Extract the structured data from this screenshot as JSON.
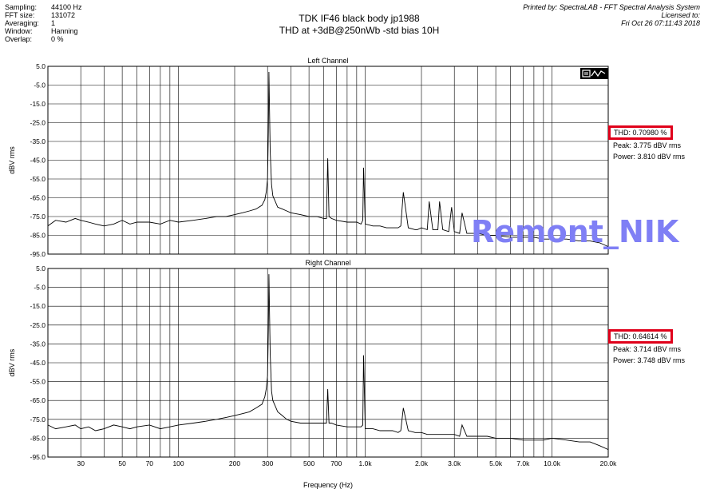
{
  "settings": [
    {
      "key": "Sampling:",
      "value": "44100 Hz"
    },
    {
      "key": "FFT size:",
      "value": "131072"
    },
    {
      "key": "Averaging:",
      "value": "1"
    },
    {
      "key": "Window:",
      "value": "Hanning"
    },
    {
      "key": "Overlap:",
      "value": "0 %"
    }
  ],
  "header": {
    "title": "TDK IF46 black body jp1988",
    "subtitle": "THD at +3dB@250nWb -std bias 10H",
    "printed_by": "Printed by: SpectraLAB - FFT Spectral Analysis System",
    "licensed_to": "Licensed to:",
    "timestamp": "Fri Oct 26 07:11:43 2018"
  },
  "watermark": "Remont_NIK",
  "left_stats": {
    "thd": "THD: 0.70980 %",
    "peak": "Peak: 3.775 dBV rms",
    "power": "Power: 3.810 dBV rms"
  },
  "right_stats": {
    "thd": "THD: 0.64614 %",
    "peak": "Peak: 3.714 dBV rms",
    "power": "Power: 3.748 dBV rms"
  },
  "colors": {
    "trace": "#000000",
    "highlight": "#e0001a",
    "watermark": "#7f7ff5"
  },
  "icons": {
    "toolbar": "spectrum-toolbar-icon"
  },
  "chart_data": [
    {
      "type": "line",
      "title": "Left Channel",
      "xlabel": "Frequency (Hz)",
      "ylabel": "dBV rms",
      "x_scale": "log",
      "xlim": [
        20,
        20000
      ],
      "ylim": [
        -95,
        5
      ],
      "xticks": [
        30,
        50,
        70,
        100,
        200,
        300,
        500,
        700,
        1000,
        2000,
        3000,
        5000,
        7000,
        10000,
        20000
      ],
      "xtick_labels": [
        "30",
        "50",
        "70",
        "100",
        "200",
        "300",
        "500",
        "700",
        "1.0k",
        "2.0k",
        "3.0k",
        "5.0k",
        "7.0k",
        "10.0k",
        "20.0k"
      ],
      "yticks": [
        5,
        -5,
        -15,
        -25,
        -35,
        -45,
        -55,
        -65,
        -75,
        -85,
        -95
      ],
      "ytick_labels": [
        "5.0",
        "-5.0",
        "-15.0",
        "-25.0",
        "-35.0",
        "-45.0",
        "-55.0",
        "-65.0",
        "-75.0",
        "-85.0",
        "-95.0"
      ],
      "grid": true,
      "series": [
        {
          "x": [
            20,
            22,
            25,
            28,
            30,
            33,
            36,
            40,
            45,
            50,
            55,
            60,
            70,
            80,
            90,
            100,
            120,
            140,
            160,
            180,
            200,
            220,
            240,
            260,
            280,
            290,
            295,
            300,
            303,
            305,
            310,
            315,
            320,
            330,
            340,
            360,
            380,
            400,
            450,
            500,
            550,
            600,
            620,
            630,
            640,
            660,
            700,
            800,
            900,
            950,
            970,
            980,
            1000,
            1100,
            1200,
            1300,
            1400,
            1500,
            1550,
            1600,
            1700,
            1850,
            1900,
            2000,
            2150,
            2200,
            2300,
            2450,
            2500,
            2600,
            2800,
            2900,
            3000,
            3200,
            3300,
            3500,
            4000,
            4500,
            5000,
            6000,
            7000,
            8000,
            9000,
            10000,
            12000,
            14000,
            16000,
            18000,
            20000
          ],
          "y": [
            -80,
            -77,
            -78,
            -76,
            -77,
            -78,
            -79,
            -80,
            -79,
            -77,
            -79,
            -78,
            -78,
            -79,
            -77,
            -78,
            -77,
            -76,
            -75,
            -75,
            -74,
            -73,
            -72,
            -71,
            -69,
            -66,
            -62,
            -55,
            -30,
            2,
            -40,
            -58,
            -64,
            -67,
            -70,
            -71,
            -72,
            -73,
            -74,
            -75,
            -75,
            -76,
            -76,
            -44,
            -75,
            -76,
            -77,
            -78,
            -78,
            -79,
            -77,
            -49,
            -79,
            -80,
            -80,
            -81,
            -81,
            -81,
            -80,
            -62,
            -81,
            -82,
            -82,
            -81,
            -82,
            -67,
            -82,
            -82,
            -67,
            -82,
            -83,
            -70,
            -83,
            -84,
            -73,
            -84,
            -84,
            -85,
            -85,
            -86,
            -86,
            -86,
            -87,
            -87,
            -87,
            -88,
            -88,
            -89,
            -91
          ]
        }
      ]
    },
    {
      "type": "line",
      "title": "Right Channel",
      "xlabel": "Frequency (Hz)",
      "ylabel": "dBV rms",
      "x_scale": "log",
      "xlim": [
        20,
        20000
      ],
      "ylim": [
        -95,
        5
      ],
      "xticks": [
        30,
        50,
        70,
        100,
        200,
        300,
        500,
        700,
        1000,
        2000,
        3000,
        5000,
        7000,
        10000,
        20000
      ],
      "xtick_labels": [
        "30",
        "50",
        "70",
        "100",
        "200",
        "300",
        "500",
        "700",
        "1.0k",
        "2.0k",
        "3.0k",
        "5.0k",
        "7.0k",
        "10.0k",
        "20.0k"
      ],
      "yticks": [
        5,
        -5,
        -15,
        -25,
        -35,
        -45,
        -55,
        -65,
        -75,
        -85,
        -95
      ],
      "ytick_labels": [
        "5.0",
        "-5.0",
        "-15.0",
        "-25.0",
        "-35.0",
        "-45.0",
        "-55.0",
        "-65.0",
        "-75.0",
        "-85.0",
        "-95.0"
      ],
      "grid": true,
      "series": [
        {
          "x": [
            20,
            22,
            25,
            28,
            30,
            33,
            36,
            40,
            45,
            50,
            55,
            60,
            70,
            80,
            90,
            100,
            120,
            140,
            160,
            180,
            200,
            220,
            240,
            260,
            280,
            290,
            295,
            300,
            303,
            305,
            310,
            315,
            320,
            330,
            340,
            360,
            380,
            400,
            450,
            500,
            550,
            600,
            620,
            630,
            640,
            660,
            700,
            800,
            900,
            950,
            970,
            980,
            1000,
            1100,
            1200,
            1300,
            1400,
            1500,
            1550,
            1600,
            1700,
            1850,
            1900,
            2000,
            2150,
            2200,
            2300,
            2450,
            2500,
            2600,
            2800,
            2900,
            3000,
            3200,
            3300,
            3500,
            4000,
            4500,
            5000,
            6000,
            7000,
            8000,
            9000,
            10000,
            12000,
            14000,
            16000,
            18000,
            20000
          ],
          "y": [
            -78,
            -80,
            -79,
            -78,
            -80,
            -79,
            -81,
            -80,
            -78,
            -79,
            -80,
            -79,
            -78,
            -80,
            -79,
            -78,
            -77,
            -76,
            -75,
            -74,
            -73,
            -72,
            -71,
            -69,
            -67,
            -63,
            -59,
            -52,
            -28,
            2,
            -40,
            -60,
            -65,
            -68,
            -71,
            -73,
            -75,
            -76,
            -77,
            -77,
            -77,
            -77,
            -77,
            -59,
            -77,
            -77,
            -78,
            -79,
            -79,
            -79,
            -78,
            -41,
            -80,
            -80,
            -81,
            -81,
            -81,
            -82,
            -81,
            -69,
            -81,
            -82,
            -82,
            -82,
            -83,
            -83,
            -83,
            -83,
            -83,
            -83,
            -83,
            -83,
            -83,
            -84,
            -78,
            -84,
            -84,
            -84,
            -85,
            -85,
            -86,
            -86,
            -86,
            -85,
            -86,
            -87,
            -87,
            -89,
            -91
          ]
        }
      ]
    }
  ]
}
